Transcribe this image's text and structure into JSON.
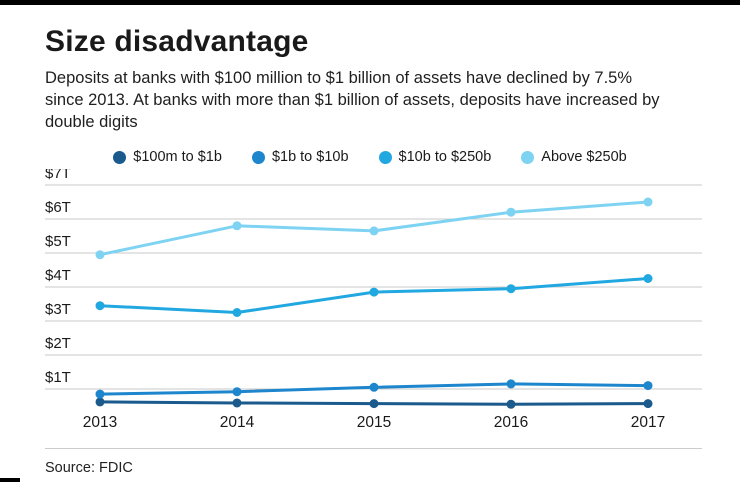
{
  "title": "Size disadvantage",
  "subtitle": "Deposits at banks with $100 million to $1 billion of assets have declined by 7.5% since 2013. At banks with more than $1 billion of assets, deposits have increased by double digits",
  "source": "Source: FDIC",
  "chart_data": {
    "type": "line",
    "title": "Size disadvantage",
    "categories": [
      "2013",
      "2014",
      "2015",
      "2016",
      "2017"
    ],
    "y_ticks": [
      "$1T",
      "$2T",
      "$3T",
      "$4T",
      "$5T",
      "$6T",
      "$7T"
    ],
    "y_tick_values": [
      1,
      2,
      3,
      4,
      5,
      6,
      7
    ],
    "ylim": [
      0,
      7
    ],
    "unit": "trillions of dollars",
    "grid": true,
    "legend_position": "top",
    "series": [
      {
        "name": "$100m to $1b",
        "color": "#1a5a8c",
        "values": [
          0.62,
          0.59,
          0.57,
          0.55,
          0.57
        ]
      },
      {
        "name": "$1b to $10b",
        "color": "#1e86cc",
        "values": [
          0.85,
          0.92,
          1.05,
          1.15,
          1.1
        ]
      },
      {
        "name": "$10b to $250b",
        "color": "#22a8e0",
        "values": [
          3.45,
          3.25,
          3.85,
          3.95,
          4.25
        ]
      },
      {
        "name": "Above $250b",
        "color": "#7ed3f2",
        "values": [
          4.95,
          5.8,
          5.65,
          6.2,
          6.5
        ]
      }
    ]
  }
}
